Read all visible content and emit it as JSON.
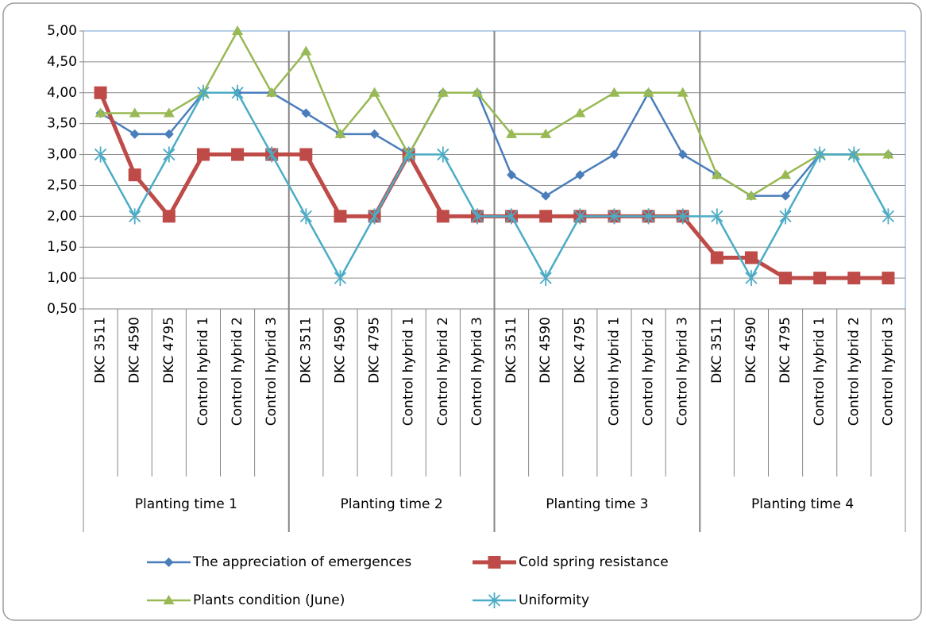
{
  "chart_data": {
    "type": "line",
    "categories": [
      "DKC 3511",
      "DKC 4590",
      "DKC 4795",
      "Control hybrid 1",
      "Control hybrid 2",
      "Control hybrid 3",
      "DKC 3511",
      "DKC 4590",
      "DKC 4795",
      "Control hybrid 1",
      "Control hybrid 2",
      "Control hybrid 3",
      "DKC 3511",
      "DKC 4590",
      "DKC 4795",
      "Control hybrid 1",
      "Control hybrid 2",
      "Control hybrid 3",
      "DKC 3511",
      "DKC 4590",
      "DKC 4795",
      "Control hybrid 1",
      "Control hybrid 2",
      "Control hybrid 3"
    ],
    "groups": [
      "Planting time 1",
      "Planting time 2",
      "Planting time 3",
      "Planting time 4"
    ],
    "series": [
      {
        "name": "The appreciation of emergences",
        "color": "#4a7ebb",
        "marker": "diamond",
        "line_width": 2.5,
        "values": [
          3.67,
          3.33,
          3.33,
          4.0,
          4.0,
          4.0,
          3.67,
          3.33,
          3.33,
          3.0,
          4.0,
          4.0,
          2.67,
          2.33,
          2.67,
          3.0,
          4.0,
          3.0,
          2.67,
          2.33,
          2.33,
          3.0,
          3.0,
          3.0
        ]
      },
      {
        "name": "Cold spring resistance",
        "color": "#be4b48",
        "marker": "square",
        "line_width": 5,
        "values": [
          4.0,
          2.67,
          2.0,
          3.0,
          3.0,
          3.0,
          3.0,
          2.0,
          2.0,
          3.0,
          2.0,
          2.0,
          2.0,
          2.0,
          2.0,
          2.0,
          2.0,
          2.0,
          1.33,
          1.33,
          1.0,
          1.0,
          1.0,
          1.0
        ]
      },
      {
        "name": "Plants condition (June)",
        "color": "#98b954",
        "marker": "triangle",
        "line_width": 2.5,
        "values": [
          3.67,
          3.67,
          3.67,
          4.0,
          5.0,
          4.0,
          4.67,
          3.33,
          4.0,
          3.0,
          4.0,
          4.0,
          3.33,
          3.33,
          3.67,
          4.0,
          4.0,
          4.0,
          2.67,
          2.33,
          2.67,
          3.0,
          3.0,
          3.0
        ]
      },
      {
        "name": "Uniformity",
        "color": "#4bacc6",
        "marker": "star",
        "line_width": 2.5,
        "values": [
          3.0,
          2.0,
          3.0,
          4.0,
          4.0,
          3.0,
          2.0,
          1.0,
          2.0,
          3.0,
          3.0,
          2.0,
          2.0,
          1.0,
          2.0,
          2.0,
          2.0,
          2.0,
          2.0,
          1.0,
          2.0,
          3.0,
          3.0,
          2.0
        ]
      }
    ],
    "ylim": [
      0.5,
      5.0
    ],
    "yticks": [
      {
        "value": 0.5,
        "label": "0,50"
      },
      {
        "value": 1.0,
        "label": "1,00"
      },
      {
        "value": 1.5,
        "label": "1,50"
      },
      {
        "value": 2.0,
        "label": "2,00"
      },
      {
        "value": 2.5,
        "label": "2,50"
      },
      {
        "value": 3.0,
        "label": "3,00"
      },
      {
        "value": 3.5,
        "label": "3,50"
      },
      {
        "value": 4.0,
        "label": "4,00"
      },
      {
        "value": 4.5,
        "label": "4,50"
      },
      {
        "value": 5.0,
        "label": "5,00"
      }
    ],
    "grid": true,
    "legend": "bottom"
  }
}
